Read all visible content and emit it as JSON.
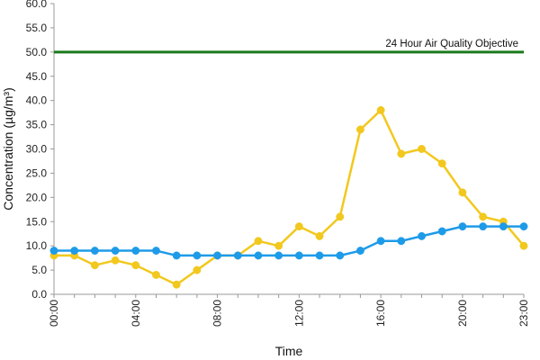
{
  "chart_data": {
    "type": "line",
    "xlabel": "Time",
    "ylabel": "Concentration (µg/m³)",
    "ylim": [
      0,
      60
    ],
    "yticks": [
      "0.0",
      "5.0",
      "10.0",
      "15.0",
      "20.0",
      "25.0",
      "30.0",
      "35.0",
      "40.0",
      "45.0",
      "50.0",
      "55.0",
      "60.0"
    ],
    "xrange": [
      0,
      23
    ],
    "xtick_labels": [
      "00:00",
      "04:00",
      "08:00",
      "12:00",
      "16:00",
      "20:00",
      "23:00"
    ],
    "xtick_hours": [
      0,
      4,
      8,
      12,
      16,
      20,
      23
    ],
    "grid": false,
    "objective": {
      "label": "24 Hour Air Quality Objective",
      "value": 50,
      "color": "#1a7a1a"
    },
    "series": [
      {
        "color": "#f2c81e",
        "x": [
          0,
          1,
          2,
          3,
          4,
          5,
          6,
          7,
          8,
          9,
          10,
          11,
          12,
          13,
          14,
          15,
          16,
          17,
          18,
          19,
          20,
          21,
          22,
          23
        ],
        "values": [
          8,
          8,
          6,
          7,
          6,
          4,
          2,
          5,
          8,
          8,
          11,
          10,
          14,
          12,
          16,
          34,
          38,
          29,
          30,
          27,
          21,
          16,
          15,
          10
        ]
      },
      {
        "color": "#1e9be8",
        "x": [
          0,
          1,
          2,
          3,
          4,
          5,
          6,
          7,
          8,
          9,
          10,
          11,
          12,
          13,
          14,
          15,
          16,
          17,
          18,
          19,
          20,
          21,
          22,
          23
        ],
        "values": [
          9,
          9,
          9,
          9,
          9,
          9,
          8,
          8,
          8,
          8,
          8,
          8,
          8,
          8,
          8,
          9,
          11,
          11,
          12,
          13,
          14,
          14,
          14,
          14
        ]
      }
    ]
  }
}
